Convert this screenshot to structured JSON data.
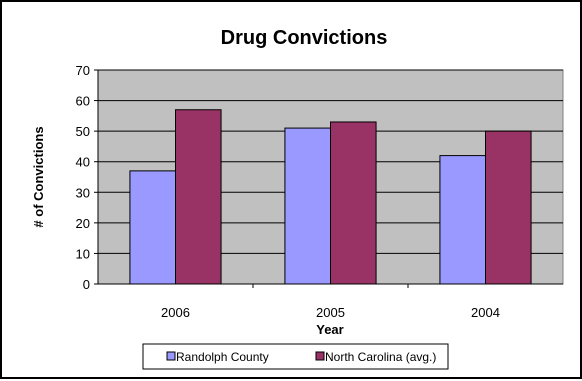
{
  "chart_data": {
    "type": "bar",
    "title": "Drug Convictions",
    "xlabel": "Year",
    "ylabel": "# of Convictions",
    "categories": [
      "2006",
      "2005",
      "2004"
    ],
    "series": [
      {
        "name": "Randolph County",
        "values": [
          37,
          51,
          42
        ],
        "color": "#9999ff"
      },
      {
        "name": "North Carolina (avg.)",
        "values": [
          57,
          53,
          50
        ],
        "color": "#993366"
      }
    ],
    "ylim": [
      0,
      70
    ],
    "yticks": [
      0,
      10,
      20,
      30,
      40,
      50,
      60,
      70
    ],
    "grid": true,
    "plot_background": "#c0c0c0",
    "legend_position": "bottom"
  }
}
